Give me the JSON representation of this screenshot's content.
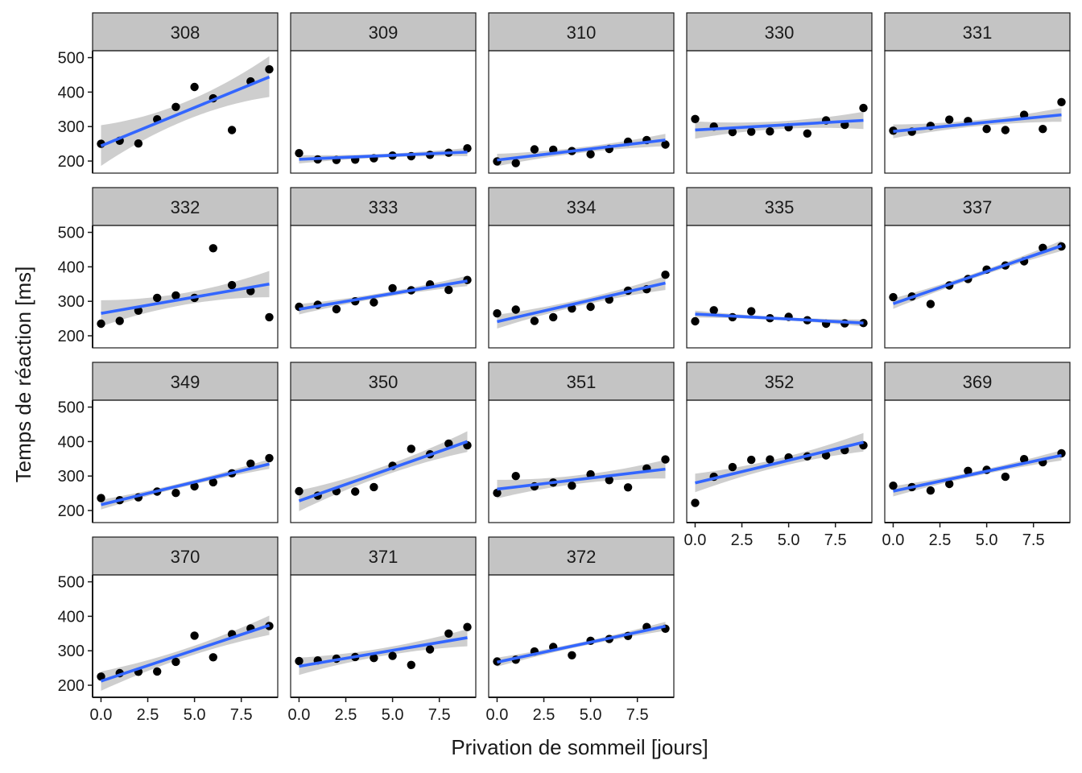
{
  "colors": {
    "points": "#000000",
    "fit_line": "#3366FF",
    "ribbon": "#bebebe",
    "strip_fill": "#c4c4c4",
    "panel_border": "#1a1a1a",
    "background": "#ffffff"
  },
  "chart_data": {
    "type": "scatter",
    "layout": {
      "rows": 4,
      "cols": 5,
      "facet_label": "subject"
    },
    "xlabel": "Privation de sommeil  [jours]",
    "ylabel": "Temps de réaction  [ms]",
    "xlim": [
      -0.45,
      9.45
    ],
    "ylim": [
      165,
      520
    ],
    "x_ticks": [
      0,
      2.5,
      5,
      7.5
    ],
    "x_tick_labels": [
      "0.0",
      "2.5",
      "5.0",
      "7.5"
    ],
    "y_ticks": [
      200,
      300,
      400,
      500
    ],
    "y_tick_labels": [
      "200",
      "300",
      "400",
      "500"
    ],
    "x": [
      0,
      1,
      2,
      3,
      4,
      5,
      6,
      7,
      8,
      9
    ],
    "overlay": "linear fit with confidence band",
    "panels": [
      {
        "label": "308",
        "y": [
          250,
          259,
          251,
          321,
          357,
          415,
          382,
          290,
          431,
          466
        ],
        "fit": [
          244,
          444
        ],
        "band": [
          58,
          60
        ]
      },
      {
        "label": "309",
        "y": [
          223,
          205,
          203,
          204,
          208,
          216,
          214,
          218,
          224,
          237
        ],
        "fit": [
          205,
          226
        ],
        "band": [
          12,
          12
        ]
      },
      {
        "label": "310",
        "y": [
          199,
          194,
          234,
          233,
          229,
          220,
          235,
          256,
          261,
          248
        ],
        "fit": [
          203,
          261
        ],
        "band": [
          18,
          18
        ]
      },
      {
        "label": "330",
        "y": [
          322,
          300,
          284,
          285,
          286,
          298,
          280,
          318,
          305,
          354
        ],
        "fit": [
          290,
          318
        ],
        "band": [
          25,
          25
        ]
      },
      {
        "label": "331",
        "y": [
          288,
          285,
          302,
          320,
          316,
          293,
          290,
          334,
          293,
          371
        ],
        "fit": [
          286,
          334
        ],
        "band": [
          20,
          20
        ]
      },
      {
        "label": "332",
        "y": [
          235,
          243,
          273,
          310,
          317,
          310,
          454,
          347,
          330,
          254
        ],
        "fit": [
          265,
          350
        ],
        "band": [
          38,
          38
        ]
      },
      {
        "label": "333",
        "y": [
          284,
          290,
          277,
          300,
          297,
          338,
          332,
          349,
          333,
          362
        ],
        "fit": [
          277,
          359
        ],
        "band": [
          15,
          15
        ]
      },
      {
        "label": "334",
        "y": [
          265,
          276,
          243,
          254,
          279,
          284,
          305,
          331,
          335,
          377
        ],
        "fit": [
          241,
          353
        ],
        "band": [
          20,
          20
        ]
      },
      {
        "label": "335",
        "y": [
          242,
          274,
          254,
          271,
          251,
          255,
          245,
          235,
          236,
          237
        ],
        "fit": [
          263,
          237
        ],
        "band": [
          10,
          10
        ]
      },
      {
        "label": "337",
        "y": [
          312,
          314,
          292,
          346,
          365,
          392,
          404,
          416,
          455,
          459
        ],
        "fit": [
          293,
          461
        ],
        "band": [
          15,
          15
        ]
      },
      {
        "label": "349",
        "y": [
          236,
          230,
          238,
          255,
          251,
          270,
          282,
          308,
          336,
          352
        ],
        "fit": [
          217,
          335
        ],
        "band": [
          14,
          14
        ]
      },
      {
        "label": "350",
        "y": [
          256,
          243,
          256,
          255,
          268,
          330,
          379,
          363,
          394,
          389
        ],
        "fit": [
          228,
          400
        ],
        "band": [
          30,
          30
        ]
      },
      {
        "label": "351",
        "y": [
          251,
          300,
          270,
          281,
          272,
          305,
          288,
          267,
          322,
          348
        ],
        "fit": [
          262,
          320
        ],
        "band": [
          27,
          27
        ]
      },
      {
        "label": "352",
        "y": [
          222,
          298,
          326,
          347,
          348,
          354,
          357,
          360,
          375,
          389
        ],
        "fit": [
          280,
          398
        ],
        "band": [
          27,
          27
        ]
      },
      {
        "label": "369",
        "y": [
          272,
          268,
          258,
          277,
          315,
          318,
          298,
          349,
          340,
          366
        ],
        "fit": [
          256,
          360
        ],
        "band": [
          15,
          15
        ]
      },
      {
        "label": "370",
        "y": [
          225,
          235,
          239,
          240,
          268,
          344,
          281,
          348,
          365,
          372
        ],
        "fit": [
          212,
          374
        ],
        "band": [
          28,
          28
        ]
      },
      {
        "label": "371",
        "y": [
          270,
          272,
          277,
          282,
          279,
          285,
          259,
          304,
          350,
          369
        ],
        "fit": [
          255,
          338
        ],
        "band": [
          25,
          25
        ]
      },
      {
        "label": "372",
        "y": [
          269,
          274,
          298,
          311,
          287,
          329,
          334,
          343,
          369,
          364
        ],
        "fit": [
          267,
          371
        ],
        "band": [
          13,
          13
        ]
      }
    ]
  }
}
